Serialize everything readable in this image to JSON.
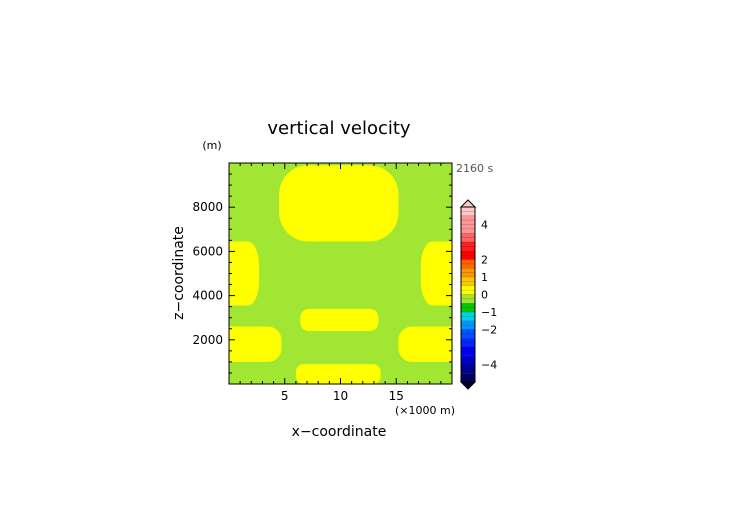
{
  "chart_data": {
    "type": "heatmap",
    "title": "vertical velocity",
    "time_label": "2160 s",
    "xlabel": "x−coordinate",
    "x_unit": "(×1000 m)",
    "ylabel": "z−coordinate",
    "y_unit": "(m)",
    "xlim": [
      0,
      20
    ],
    "ylim": [
      0,
      10000
    ],
    "x_ticks": [
      5,
      10,
      15
    ],
    "x_tick_labels": [
      "5",
      "10",
      "15"
    ],
    "y_ticks": [
      2000,
      4000,
      6000,
      8000
    ],
    "y_tick_labels": [
      "2000",
      "4000",
      "6000",
      "8000"
    ],
    "background_level": {
      "range": [
        -0.5,
        0
      ],
      "color": "#a0e632"
    },
    "regions": [
      {
        "level": [
          0,
          0.5
        ],
        "color": "#ffff00",
        "x_range": [
          4.5,
          15.2
        ],
        "z_range": [
          6450,
          9900
        ]
      },
      {
        "level": [
          0,
          0.5
        ],
        "color": "#ffff00",
        "x_range": [
          0,
          2.7
        ],
        "z_range": [
          3550,
          6450
        ]
      },
      {
        "level": [
          0,
          0.5
        ],
        "color": "#ffff00",
        "x_range": [
          17.2,
          20
        ],
        "z_range": [
          3550,
          6450
        ]
      },
      {
        "level": [
          0,
          0.5
        ],
        "color": "#ffff00",
        "x_range": [
          6.4,
          13.4
        ],
        "z_range": [
          2400,
          3400
        ]
      },
      {
        "level": [
          0,
          0.5
        ],
        "color": "#ffff00",
        "x_range": [
          0,
          4.7
        ],
        "z_range": [
          1000,
          2600
        ]
      },
      {
        "level": [
          0,
          0.5
        ],
        "color": "#ffff00",
        "x_range": [
          15.2,
          20
        ],
        "z_range": [
          1000,
          2600
        ]
      },
      {
        "level": [
          0,
          0.5
        ],
        "color": "#ffff00",
        "x_range": [
          6.0,
          13.6
        ],
        "z_range": [
          0,
          900
        ]
      }
    ],
    "colorbar": {
      "min": -5,
      "max": 5,
      "tick_labels": [
        {
          "value": 4,
          "label": "4"
        },
        {
          "value": 2,
          "label": "2"
        },
        {
          "value": 1,
          "label": "1"
        },
        {
          "value": 0,
          "label": "0"
        },
        {
          "value": -1,
          "label": "−1"
        },
        {
          "value": -2,
          "label": "−2"
        },
        {
          "value": -4,
          "label": "−4"
        }
      ],
      "bands": [
        {
          "from": 4.5,
          "to": 5,
          "color": "#ffc8c8"
        },
        {
          "from": 3.5,
          "to": 4.5,
          "color": "#ff9696"
        },
        {
          "from": 3,
          "to": 3.5,
          "color": "#ff6464"
        },
        {
          "from": 2.5,
          "to": 3,
          "color": "#ff1e1e"
        },
        {
          "from": 2,
          "to": 2.5,
          "color": "#ff0000"
        },
        {
          "from": 1.5,
          "to": 2,
          "color": "#ff6400"
        },
        {
          "from": 1,
          "to": 1.5,
          "color": "#ff9600"
        },
        {
          "from": 0.5,
          "to": 1,
          "color": "#ffc800"
        },
        {
          "from": 0,
          "to": 0.5,
          "color": "#ffff00"
        },
        {
          "from": -0.5,
          "to": 0,
          "color": "#a0e632"
        },
        {
          "from": -1,
          "to": -0.5,
          "color": "#00c800"
        },
        {
          "from": -1.5,
          "to": -1,
          "color": "#00d2e6"
        },
        {
          "from": -2,
          "to": -1.5,
          "color": "#0096ff"
        },
        {
          "from": -2.5,
          "to": -2,
          "color": "#0050ff"
        },
        {
          "from": -3,
          "to": -2.5,
          "color": "#0028ff"
        },
        {
          "from": -3.5,
          "to": -3,
          "color": "#0000f0"
        },
        {
          "from": -4,
          "to": -3.5,
          "color": "#0000c8"
        },
        {
          "from": -4.5,
          "to": -4,
          "color": "#000096"
        },
        {
          "from": -5,
          "to": -4.5,
          "color": "#000064"
        }
      ],
      "over_color": "#ffc8c8",
      "under_color": "#000028"
    }
  }
}
